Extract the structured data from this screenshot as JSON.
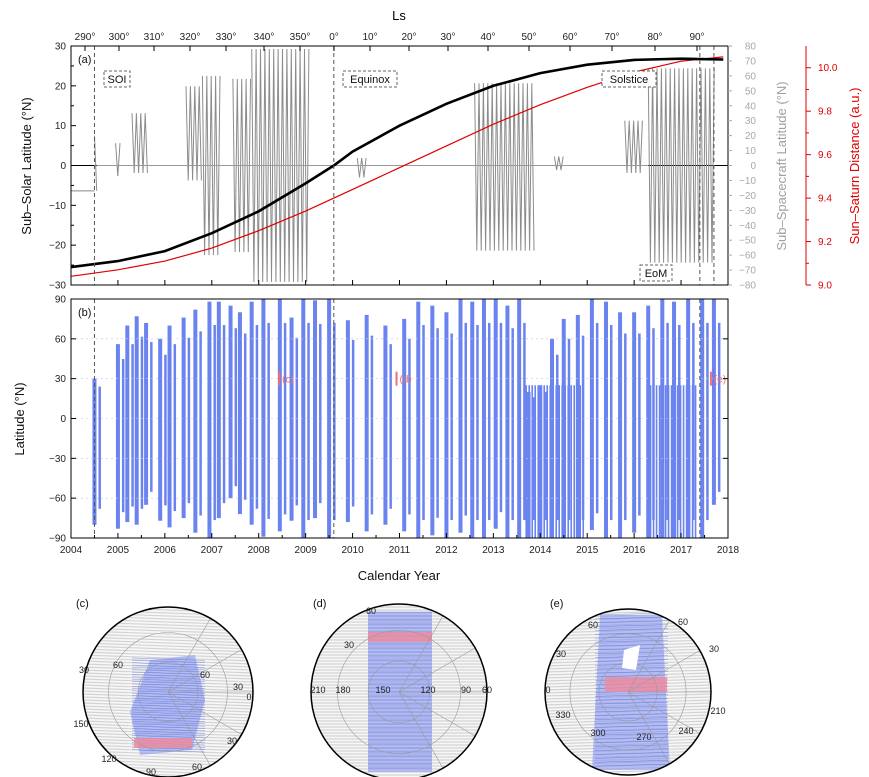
{
  "chart_data": [
    {
      "panel": "(a)",
      "type": "line",
      "title": "",
      "xlabel": "",
      "top_axis_label": "Ls",
      "top_axis_ticks": [
        "290°",
        "300°",
        "310°",
        "320°",
        "330°",
        "340°",
        "350°",
        "0°",
        "10°",
        "20°",
        "30°",
        "40°",
        "50°",
        "60°",
        "70°",
        "80°",
        "90°"
      ],
      "ylabel_left": "Sub–Solar Latitude (°N)",
      "ylabel_right_gray": "Sub–Spacecraft Latitude (°N)",
      "ylabel_right_red": "Sun–Saturn Distance (a.u.)",
      "xlim": [
        2004,
        2018
      ],
      "ylim_left": [
        -30,
        30
      ],
      "ylim_right_gray": [
        -80,
        80
      ],
      "ylim_right_red": [
        9.0,
        10.1
      ],
      "left_ticks": [
        "30",
        "20",
        "10",
        "0",
        "−10",
        "−20",
        "−30"
      ],
      "gray_ticks": [
        "80",
        "70",
        "60",
        "50",
        "40",
        "30",
        "20",
        "10",
        "0",
        "−10",
        "−20",
        "−30",
        "−40",
        "−50",
        "−60",
        "−70",
        "−80"
      ],
      "red_ticks": [
        "10.0",
        "9.8",
        "9.6",
        "9.4",
        "9.2",
        "9.0"
      ],
      "annotations": [
        "SOI",
        "Equinox",
        "Solstice",
        "EoM"
      ],
      "event_years": {
        "SOI": 2004.5,
        "Equinox": 2009.6,
        "Solstice": 2017.4,
        "EoM": 2017.7
      },
      "series": [
        {
          "name": "Sub–Solar Latitude",
          "color": "#000000",
          "x": [
            2004.0,
            2005.0,
            2006.0,
            2007.0,
            2008.0,
            2009.0,
            2009.6,
            2010.0,
            2011.0,
            2012.0,
            2013.0,
            2014.0,
            2015.0,
            2016.0,
            2017.0,
            2017.4,
            2017.9
          ],
          "y": [
            -25.5,
            -24.0,
            -21.5,
            -17.0,
            -11.5,
            -4.5,
            0.0,
            3.5,
            10.0,
            15.5,
            20.0,
            23.2,
            25.3,
            26.5,
            26.8,
            26.7,
            26.6
          ]
        },
        {
          "name": "Sun–Saturn Distance",
          "color": "#e00000",
          "x": [
            2004.0,
            2005.0,
            2006.0,
            2007.0,
            2008.0,
            2009.0,
            2010.0,
            2011.0,
            2012.0,
            2013.0,
            2014.0,
            2015.0,
            2016.0,
            2017.0,
            2017.9
          ],
          "y": [
            9.04,
            9.07,
            9.11,
            9.17,
            9.25,
            9.34,
            9.44,
            9.54,
            9.64,
            9.74,
            9.83,
            9.91,
            9.98,
            10.03,
            10.05
          ]
        },
        {
          "name": "Sub–Spacecraft Latitude",
          "color": "#888888",
          "baseline_before_SOI": -17,
          "envelopes": [
            {
              "x": [
                2004.5,
                2004.55
              ],
              "max": 20,
              "min": -17
            },
            {
              "x": [
                2004.95,
                2005.05
              ],
              "max": 15,
              "min": -7
            },
            {
              "x": [
                2005.3,
                2005.65
              ],
              "max": 35,
              "min": -5
            },
            {
              "x": [
                2006.45,
                2006.8
              ],
              "max": 53,
              "min": -10
            },
            {
              "x": [
                2006.8,
                2007.2
              ],
              "max": 60,
              "min": -60
            },
            {
              "x": [
                2007.45,
                2007.85
              ],
              "max": 58,
              "min": -58
            },
            {
              "x": [
                2007.85,
                2009.1
              ],
              "max": 78,
              "min": -78
            },
            {
              "x": [
                2010.1,
                2010.3
              ],
              "max": 5,
              "min": -8
            },
            {
              "x": [
                2012.6,
                2013.9
              ],
              "max": 55,
              "min": -57
            },
            {
              "x": [
                2014.3,
                2014.5
              ],
              "max": 6,
              "min": -3
            },
            {
              "x": [
                2015.8,
                2016.2
              ],
              "max": 30,
              "min": -5
            },
            {
              "x": [
                2016.3,
                2017.75
              ],
              "max": 65,
              "min": -65
            }
          ]
        }
      ]
    },
    {
      "panel": "(b)",
      "type": "bar",
      "title": "",
      "xlabel": "Calendar Year",
      "ylabel": "Latitude (°N)",
      "xlim": [
        2004,
        2018
      ],
      "ylim": [
        -90,
        90
      ],
      "x_ticks": [
        "2004",
        "2005",
        "2006",
        "2007",
        "2008",
        "2009",
        "2010",
        "2011",
        "2012",
        "2013",
        "2014",
        "2015",
        "2016",
        "2017",
        "2018"
      ],
      "y_ticks": [
        "90",
        "60",
        "30",
        "0",
        "−30",
        "−60",
        "−90"
      ],
      "color": "#6b83ee",
      "callouts": [
        {
          "label": "(c)",
          "x": 2008.5,
          "y": 30
        },
        {
          "label": "(d)",
          "x": 2011.0,
          "y": 30
        },
        {
          "label": "(e)",
          "x": 2017.7,
          "y": 30
        }
      ],
      "coverage": [
        {
          "x": 2004.5,
          "lo": -80,
          "hi": 30
        },
        {
          "x": 2005.0,
          "lo": -83,
          "hi": 56
        },
        {
          "x": 2005.2,
          "lo": -78,
          "hi": 70
        },
        {
          "x": 2005.4,
          "lo": -80,
          "hi": 77
        },
        {
          "x": 2005.6,
          "lo": -65,
          "hi": 72
        },
        {
          "x": 2005.9,
          "lo": -77,
          "hi": 60
        },
        {
          "x": 2006.1,
          "lo": -82,
          "hi": 70
        },
        {
          "x": 2006.4,
          "lo": -75,
          "hi": 76
        },
        {
          "x": 2006.65,
          "lo": -86,
          "hi": 82
        },
        {
          "x": 2006.95,
          "lo": -90,
          "hi": 88
        },
        {
          "x": 2007.15,
          "lo": -75,
          "hi": 88
        },
        {
          "x": 2007.4,
          "lo": -60,
          "hi": 85
        },
        {
          "x": 2007.6,
          "lo": -72,
          "hi": 80
        },
        {
          "x": 2007.85,
          "lo": -80,
          "hi": 88
        },
        {
          "x": 2008.1,
          "lo": -89,
          "hi": 90
        },
        {
          "x": 2008.45,
          "lo": -85,
          "hi": 90
        },
        {
          "x": 2008.7,
          "lo": -77,
          "hi": 76
        },
        {
          "x": 2008.95,
          "lo": -90,
          "hi": 90
        },
        {
          "x": 2009.2,
          "lo": -75,
          "hi": 89
        },
        {
          "x": 2009.5,
          "lo": -90,
          "hi": 90
        },
        {
          "x": 2009.9,
          "lo": -78,
          "hi": 74
        },
        {
          "x": 2010.3,
          "lo": -85,
          "hi": 78
        },
        {
          "x": 2010.7,
          "lo": -80,
          "hi": 70
        },
        {
          "x": 2011.1,
          "lo": -85,
          "hi": 75
        },
        {
          "x": 2011.4,
          "lo": -90,
          "hi": 88
        },
        {
          "x": 2011.7,
          "lo": -88,
          "hi": 85
        },
        {
          "x": 2012.0,
          "lo": -90,
          "hi": 80
        },
        {
          "x": 2012.3,
          "lo": -86,
          "hi": 90
        },
        {
          "x": 2012.55,
          "lo": -90,
          "hi": 88
        },
        {
          "x": 2012.8,
          "lo": -90,
          "hi": 90
        },
        {
          "x": 2013.05,
          "lo": -83,
          "hi": 90
        },
        {
          "x": 2013.3,
          "lo": -90,
          "hi": 85
        },
        {
          "x": 2013.55,
          "lo": -90,
          "hi": 90
        },
        {
          "x": 2013.75,
          "lo": -90,
          "hi": 20
        },
        {
          "x": 2014.0,
          "lo": -90,
          "hi": 25
        },
        {
          "x": 2014.25,
          "lo": -90,
          "hi": 60
        },
        {
          "x": 2014.5,
          "lo": -90,
          "hi": 75
        },
        {
          "x": 2014.8,
          "lo": -90,
          "hi": 78
        },
        {
          "x": 2015.1,
          "lo": -84,
          "hi": 90
        },
        {
          "x": 2015.4,
          "lo": -90,
          "hi": 88
        },
        {
          "x": 2015.7,
          "lo": -90,
          "hi": 80
        },
        {
          "x": 2016.0,
          "lo": -86,
          "hi": 80
        },
        {
          "x": 2016.3,
          "lo": -90,
          "hi": 85
        },
        {
          "x": 2016.6,
          "lo": -90,
          "hi": 90
        },
        {
          "x": 2016.85,
          "lo": -90,
          "hi": 88
        },
        {
          "x": 2017.15,
          "lo": -90,
          "hi": 90
        },
        {
          "x": 2017.45,
          "lo": -90,
          "hi": 90
        },
        {
          "x": 2017.7,
          "lo": -65,
          "hi": 90
        }
      ]
    },
    {
      "panel": "(c)",
      "type": "other",
      "title": "",
      "lat_labels": [
        "30",
        "60",
        "60",
        "30",
        "30",
        "60"
      ],
      "lon_labels": [
        "0",
        "150",
        "120",
        "90"
      ]
    },
    {
      "panel": "(d)",
      "type": "other",
      "title": "",
      "lat_labels": [
        "60",
        "30"
      ],
      "lon_labels": [
        "210",
        "180",
        "150",
        "120",
        "90",
        "60"
      ]
    },
    {
      "panel": "(e)",
      "type": "other",
      "title": "",
      "lat_labels": [
        "60",
        "60",
        "30",
        "30"
      ],
      "lon_labels": [
        "0",
        "330",
        "300",
        "270",
        "240",
        "210"
      ]
    }
  ]
}
